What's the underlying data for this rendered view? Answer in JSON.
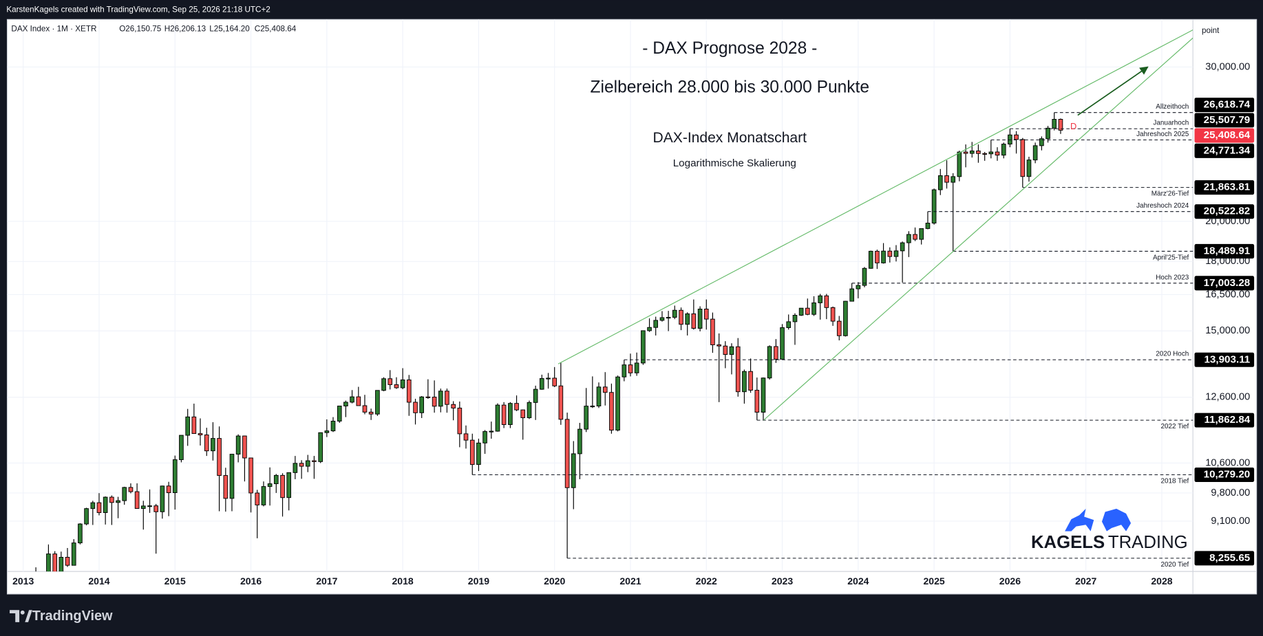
{
  "header": {
    "credit": "KarstenKagels created with TradingView.com, Sep 25, 2026 21:18 UTC+2"
  },
  "footer": {
    "logo": "TradingView"
  },
  "watermark": [
    "KAGELS",
    "TRADING"
  ],
  "chart_data": {
    "type": "candlestick",
    "title": "- DAX Prognose 2028 -",
    "subtitle": "Zielbereich 28.000 bis 30.000 Punkte",
    "annotations": [
      "DAX-Index Monatschart",
      "Logarithmische Skalierung"
    ],
    "symbol": "DAX Index · 1M · XETR",
    "ohlc_legend": [
      "O26,150.75",
      "H26,206.13",
      "L25,164.20",
      "C25,408.64"
    ],
    "axis_unit": "point",
    "last_marker": "D",
    "log_scale": true,
    "grid": true,
    "colors": {
      "up": "#2e7d32",
      "down": "#ef5350",
      "wick": "#000000",
      "trend": "#66bb6a",
      "arrow": "#1b5e20"
    },
    "xlim": [
      2012.79,
      2028.41
    ],
    "xticks": [
      2013,
      2014,
      2015,
      2016,
      2017,
      2018,
      2019,
      2020,
      2021,
      2022,
      2023,
      2024,
      2025,
      2026,
      2027,
      2028
    ],
    "ylim": [
      7973,
      33990
    ],
    "yticks": [
      {
        "value": 30000,
        "label": "30,000.00"
      },
      {
        "value": 20000,
        "label": "20,000.00"
      },
      {
        "value": 18000,
        "label": "18,000.00"
      },
      {
        "value": 16500,
        "label": "16,500.00"
      },
      {
        "value": 15000,
        "label": "15,000.00"
      },
      {
        "value": 12600,
        "label": "12,600.00"
      },
      {
        "value": 10600,
        "label": "10,600.00"
      },
      {
        "value": 9800,
        "label": "9,800.00"
      },
      {
        "value": 9100,
        "label": "9,100.00"
      }
    ],
    "levels": [
      {
        "value": 26618.74,
        "label": "26,618.74",
        "note": "Allzeithoch",
        "note_side": "above"
      },
      {
        "value": 25507.79,
        "label": "25,507.79",
        "note": "Januarhoch",
        "note_side": "above"
      },
      {
        "value": 25408.64,
        "label": "25,408.64",
        "color": "#f23645"
      },
      {
        "value": 24771.34,
        "label": "24,771.34",
        "note": "Jahreshoch 2025",
        "note_side": "above"
      },
      {
        "value": 21863.81,
        "label": "21,863.81",
        "note": "März'26-Tief",
        "note_side": "below"
      },
      {
        "value": 20522.82,
        "label": "20,522.82",
        "note": "Jahreshoch 2024",
        "note_side": "above"
      },
      {
        "value": 18489.91,
        "label": "18,489.91",
        "note": "April'25-Tief",
        "note_side": "below"
      },
      {
        "value": 17003.28,
        "label": "17,003.28",
        "note": "Hoch 2023",
        "note_side": "above"
      },
      {
        "value": 13903.11,
        "label": "13,903.11",
        "note": "2020 Hoch",
        "note_side": "above"
      },
      {
        "value": 11862.84,
        "label": "11,862.84",
        "note": "2022 Tief",
        "note_side": "below"
      },
      {
        "value": 10279.2,
        "label": "10,279.20",
        "note": "2018 Tief",
        "note_side": "below"
      },
      {
        "value": 8255.65,
        "label": "8,255.65",
        "note": "2020 Tief",
        "note_side": "below"
      }
    ],
    "x": [
      2013.167,
      2013.25,
      2013.333,
      2013.417,
      2013.5,
      2013.583,
      2013.667,
      2013.75,
      2013.833,
      2013.917,
      2014,
      2014.083,
      2014.167,
      2014.25,
      2014.333,
      2014.417,
      2014.5,
      2014.583,
      2014.667,
      2014.75,
      2014.833,
      2014.917,
      2015,
      2015.083,
      2015.167,
      2015.25,
      2015.333,
      2015.417,
      2015.5,
      2015.583,
      2015.667,
      2015.75,
      2015.833,
      2015.917,
      2016,
      2016.083,
      2016.167,
      2016.25,
      2016.333,
      2016.417,
      2016.5,
      2016.583,
      2016.667,
      2016.75,
      2016.833,
      2016.917,
      2017,
      2017.083,
      2017.167,
      2017.25,
      2017.333,
      2017.417,
      2017.5,
      2017.583,
      2017.667,
      2017.75,
      2017.833,
      2017.917,
      2018,
      2018.083,
      2018.167,
      2018.25,
      2018.333,
      2018.417,
      2018.5,
      2018.583,
      2018.667,
      2018.75,
      2018.833,
      2018.917,
      2019,
      2019.083,
      2019.167,
      2019.25,
      2019.333,
      2019.417,
      2019.5,
      2019.583,
      2019.667,
      2019.75,
      2019.833,
      2019.917,
      2020,
      2020.083,
      2020.167,
      2020.25,
      2020.333,
      2020.417,
      2020.5,
      2020.583,
      2020.667,
      2020.75,
      2020.833,
      2020.917,
      2021,
      2021.083,
      2021.167,
      2021.25,
      2021.333,
      2021.417,
      2021.5,
      2021.583,
      2021.667,
      2021.75,
      2021.833,
      2021.917,
      2022,
      2022.083,
      2022.167,
      2022.25,
      2022.333,
      2022.417,
      2022.5,
      2022.583,
      2022.667,
      2022.75,
      2022.833,
      2022.917,
      2023,
      2023.083,
      2023.167,
      2023.25,
      2023.333,
      2023.417,
      2023.5,
      2023.583,
      2023.667,
      2023.75,
      2023.833,
      2023.917,
      2024,
      2024.083,
      2024.167,
      2024.25,
      2024.333,
      2024.417,
      2024.5,
      2024.583,
      2024.667,
      2024.75,
      2024.833,
      2024.917,
      2025,
      2025.083,
      2025.167,
      2025.25,
      2025.333,
      2025.417,
      2025.5,
      2025.583,
      2025.667,
      2025.75,
      2025.833,
      2025.917,
      2026,
      2026.083,
      2026.167,
      2026.25,
      2026.333,
      2026.417,
      2026.5,
      2026.583,
      2026.667
    ],
    "candles": [
      [
        7741,
        8060,
        7600,
        7795
      ],
      [
        7795,
        7950,
        7420,
        7914
      ],
      [
        7914,
        8558,
        7900,
        8349
      ],
      [
        8349,
        8410,
        7655,
        7959
      ],
      [
        7959,
        8400,
        7910,
        8276
      ],
      [
        8276,
        8480,
        8070,
        8103
      ],
      [
        8103,
        8680,
        8100,
        8594
      ],
      [
        8594,
        9050,
        8560,
        9033
      ],
      [
        9033,
        9425,
        9000,
        9405
      ],
      [
        9405,
        9600,
        9010,
        9552
      ],
      [
        9552,
        9795,
        9240,
        9306
      ],
      [
        9306,
        9710,
        9020,
        9692
      ],
      [
        9692,
        9735,
        9010,
        9556
      ],
      [
        9556,
        9700,
        9170,
        9603
      ],
      [
        9603,
        9960,
        9500,
        9943
      ],
      [
        9943,
        10050,
        9790,
        9833
      ],
      [
        9833,
        10050,
        9400,
        9407
      ],
      [
        9407,
        9600,
        8900,
        9470
      ],
      [
        9470,
        9890,
        9300,
        9474
      ],
      [
        9474,
        9520,
        8355,
        9327
      ],
      [
        9327,
        9990,
        9160,
        9980
      ],
      [
        9980,
        10090,
        9220,
        9806
      ],
      [
        9806,
        10810,
        9380,
        10694
      ],
      [
        10694,
        11400,
        10620,
        11402
      ],
      [
        11402,
        12220,
        11090,
        11966
      ],
      [
        11966,
        12390,
        11450,
        11454
      ],
      [
        11454,
        11920,
        11100,
        11414
      ],
      [
        11414,
        11630,
        10800,
        10945
      ],
      [
        10945,
        11800,
        10670,
        11309
      ],
      [
        11309,
        11670,
        9340,
        10259
      ],
      [
        10259,
        10470,
        9330,
        9660
      ],
      [
        9660,
        10850,
        9340,
        10850
      ],
      [
        10850,
        11430,
        10620,
        11382
      ],
      [
        11382,
        11390,
        10100,
        10743
      ],
      [
        10743,
        10745,
        9310,
        9798
      ],
      [
        9798,
        9880,
        8700,
        9495
      ],
      [
        9495,
        10100,
        9460,
        9966
      ],
      [
        9966,
        10480,
        9480,
        10039
      ],
      [
        10039,
        10300,
        9800,
        10263
      ],
      [
        10263,
        10320,
        9210,
        9680
      ],
      [
        9680,
        10340,
        9360,
        10337
      ],
      [
        10337,
        10800,
        10160,
        10593
      ],
      [
        10593,
        10680,
        10170,
        10511
      ],
      [
        10511,
        10830,
        10350,
        10665
      ],
      [
        10665,
        10800,
        10170,
        10640
      ],
      [
        10640,
        11490,
        10600,
        11481
      ],
      [
        11481,
        11890,
        11350,
        11535
      ],
      [
        11535,
        11960,
        11500,
        11834
      ],
      [
        11834,
        12310,
        11780,
        12313
      ],
      [
        12313,
        12490,
        11960,
        12438
      ],
      [
        12438,
        12840,
        12400,
        12615
      ],
      [
        12615,
        12950,
        12330,
        12325
      ],
      [
        12325,
        12680,
        12050,
        12118
      ],
      [
        12118,
        12230,
        11870,
        12056
      ],
      [
        12056,
        12830,
        12000,
        12829
      ],
      [
        12829,
        13280,
        12800,
        13230
      ],
      [
        13230,
        13530,
        12860,
        13024
      ],
      [
        13024,
        13280,
        12880,
        12918
      ],
      [
        12918,
        13600,
        12870,
        13189
      ],
      [
        13189,
        13360,
        12000,
        12436
      ],
      [
        12436,
        12550,
        11730,
        12097
      ],
      [
        12097,
        12640,
        11930,
        12612
      ],
      [
        12612,
        13210,
        12550,
        12605
      ],
      [
        12605,
        13170,
        12100,
        12306
      ],
      [
        12306,
        12890,
        12110,
        12806
      ],
      [
        12806,
        12890,
        12100,
        12364
      ],
      [
        12364,
        12470,
        11860,
        12247
      ],
      [
        12247,
        12460,
        11050,
        11447
      ],
      [
        11447,
        11700,
        11010,
        11257
      ],
      [
        11257,
        11450,
        10279.2,
        10559
      ],
      [
        10559,
        11300,
        10380,
        11173
      ],
      [
        11173,
        11560,
        10860,
        11516
      ],
      [
        11516,
        11820,
        11300,
        11526
      ],
      [
        11526,
        12400,
        11510,
        12344
      ],
      [
        12344,
        12440,
        11620,
        11727
      ],
      [
        11727,
        12440,
        11620,
        12399
      ],
      [
        12399,
        12660,
        12150,
        12189
      ],
      [
        12189,
        12200,
        11270,
        11939
      ],
      [
        11939,
        12490,
        11900,
        12428
      ],
      [
        12428,
        12990,
        11870,
        12867
      ],
      [
        12867,
        13370,
        12850,
        13236
      ],
      [
        13236,
        13430,
        12890,
        13249
      ],
      [
        13249,
        13640,
        12940,
        12982
      ],
      [
        12982,
        13795,
        11720,
        11890
      ],
      [
        11890,
        12100,
        8255.65,
        9936
      ],
      [
        9936,
        11230,
        9390,
        10862
      ],
      [
        10862,
        11780,
        10160,
        11587
      ],
      [
        11587,
        12910,
        11500,
        12311
      ],
      [
        12311,
        13310,
        12250,
        12313
      ],
      [
        12313,
        13100,
        12250,
        12945
      ],
      [
        12945,
        13460,
        12330,
        12761
      ],
      [
        12761,
        13060,
        11450,
        11556
      ],
      [
        11556,
        13340,
        11520,
        13291
      ],
      [
        13291,
        13903.11,
        13140,
        13719
      ],
      [
        13719,
        14130,
        13310,
        13433
      ],
      [
        13433,
        14170,
        13330,
        13786
      ],
      [
        13786,
        15010,
        13720,
        15008
      ],
      [
        15008,
        15500,
        14960,
        15136
      ],
      [
        15136,
        15570,
        14820,
        15421
      ],
      [
        15421,
        15800,
        15370,
        15531
      ],
      [
        15531,
        15810,
        14990,
        15544
      ],
      [
        15544,
        16030,
        15470,
        15835
      ],
      [
        15835,
        15950,
        15030,
        15261
      ],
      [
        15261,
        15750,
        14820,
        15689
      ],
      [
        15689,
        16290,
        15050,
        15100
      ],
      [
        15100,
        16000,
        14980,
        15885
      ],
      [
        15885,
        16290,
        15050,
        15471
      ],
      [
        15471,
        15740,
        14160,
        14461
      ],
      [
        14461,
        14900,
        12440,
        14415
      ],
      [
        14415,
        14600,
        13600,
        14098
      ],
      [
        14098,
        14520,
        13380,
        14388
      ],
      [
        14388,
        14720,
        12620,
        12784
      ],
      [
        12784,
        13550,
        12390,
        13484
      ],
      [
        13484,
        13950,
        12750,
        12835
      ],
      [
        12835,
        13270,
        11862.84,
        12114
      ],
      [
        12114,
        13270,
        11870,
        13254
      ],
      [
        13254,
        14440,
        13200,
        14397
      ],
      [
        14397,
        14680,
        13790,
        13924
      ],
      [
        13924,
        15270,
        13920,
        15128
      ],
      [
        15128,
        15660,
        15050,
        15365
      ],
      [
        15365,
        15710,
        14460,
        15629
      ],
      [
        15629,
        15920,
        15600,
        15922
      ],
      [
        15922,
        16330,
        15630,
        15664
      ],
      [
        15664,
        16430,
        15600,
        16148
      ],
      [
        16148,
        16530,
        15450,
        16447
      ],
      [
        16447,
        16530,
        15470,
        15947
      ],
      [
        15947,
        15990,
        15200,
        15387
      ],
      [
        15387,
        15600,
        14630,
        14810
      ],
      [
        14810,
        16230,
        14780,
        16215
      ],
      [
        16215,
        17003.28,
        16210,
        16752
      ],
      [
        16752,
        17050,
        16340,
        16904
      ],
      [
        16904,
        17740,
        16820,
        17678
      ],
      [
        17678,
        18520,
        17660,
        18492
      ],
      [
        18492,
        18570,
        17650,
        17932
      ],
      [
        17932,
        18890,
        17900,
        18498
      ],
      [
        18498,
        18680,
        17950,
        18235
      ],
      [
        18235,
        18790,
        18000,
        18509
      ],
      [
        18509,
        18970,
        17030,
        18907
      ],
      [
        18907,
        19490,
        18210,
        19325
      ],
      [
        19325,
        19680,
        18990,
        19078
      ],
      [
        19078,
        19640,
        18820,
        19626
      ],
      [
        19626,
        20522.82,
        19590,
        19909
      ],
      [
        19909,
        21800,
        19830,
        21732
      ],
      [
        21732,
        22950,
        21430,
        22551
      ],
      [
        22551,
        23480,
        21800,
        22163
      ],
      [
        22163,
        22700,
        18489.91,
        22497
      ],
      [
        22497,
        24080,
        22220,
        23997
      ],
      [
        23997,
        24480,
        23050,
        23910
      ],
      [
        23910,
        24640,
        23650,
        24065
      ],
      [
        24065,
        24480,
        23330,
        23902
      ],
      [
        23902,
        24000,
        23450,
        23881
      ],
      [
        23881,
        24771.34,
        23600,
        24000
      ],
      [
        24000,
        24300,
        23450,
        23800
      ],
      [
        23800,
        24600,
        23600,
        24500
      ],
      [
        24500,
        25507.79,
        24300,
        25100
      ],
      [
        25100,
        25350,
        23900,
        24800
      ],
      [
        24800,
        24900,
        21863.81,
        22500
      ],
      [
        22500,
        23700,
        22200,
        23500
      ],
      [
        23500,
        24600,
        23300,
        24400
      ],
      [
        24400,
        25000,
        24100,
        24850
      ],
      [
        24850,
        25700,
        24600,
        25550
      ],
      [
        25550,
        26618.74,
        25400,
        26150.75
      ],
      [
        26150.75,
        26206.13,
        25164.2,
        25408.64
      ]
    ]
  }
}
